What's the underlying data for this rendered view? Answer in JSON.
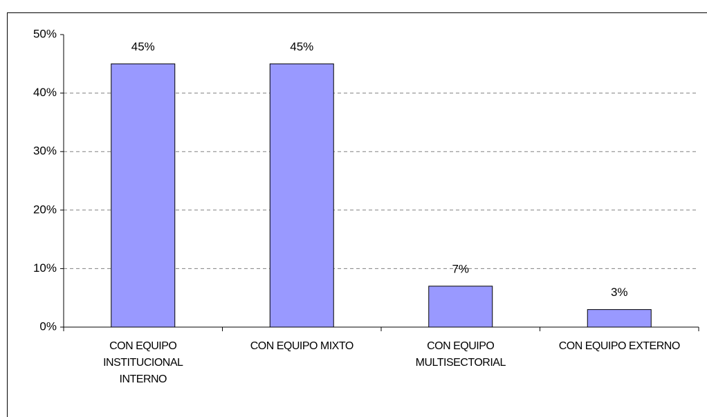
{
  "chart_data": {
    "type": "bar",
    "categories": [
      "CON EQUIPO INSTITUCIONAL INTERNO",
      "CON EQUIPO MIXTO",
      "CON EQUIPO MULTISECTORIAL",
      "CON EQUIPO EXTERNO"
    ],
    "values": [
      45,
      45,
      7,
      3
    ],
    "value_labels": [
      "45%",
      "45%",
      "7%",
      "3%"
    ],
    "color": "#9999ff",
    "ylim": [
      0,
      50
    ],
    "yticks": [
      {
        "value": 0,
        "label": "0%"
      },
      {
        "value": 10,
        "label": "10%"
      },
      {
        "value": 20,
        "label": "20%"
      },
      {
        "value": 30,
        "label": "30%"
      },
      {
        "value": 40,
        "label": "40%"
      },
      {
        "value": 50,
        "label": "50%"
      }
    ],
    "grid": true
  }
}
